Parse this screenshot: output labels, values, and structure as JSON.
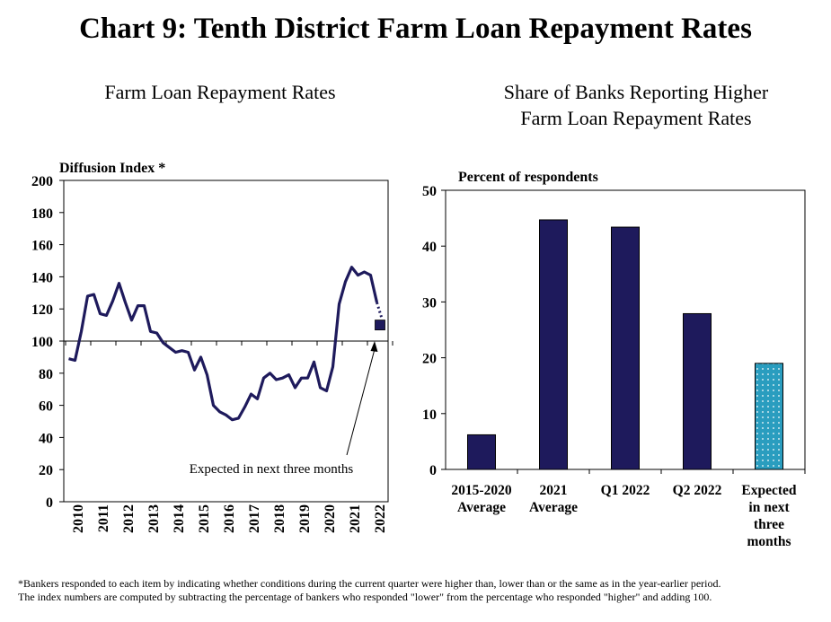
{
  "title": "Chart 9: Tenth District Farm Loan Repayment Rates",
  "colors": {
    "series": "#1e1a5c",
    "expected_bar": "#2a9dbf",
    "axis": "#000000"
  },
  "footnote": [
    "*Bankers responded to each item by indicating whether conditions during the current quarter were higher than,  lower than or the same as in the year-earlier period.",
    "The index numbers are computed by subtracting the percentage of bankers who responded \"lower\" from the percentage who responded \"higher\" and adding 100."
  ],
  "chart_data": [
    {
      "type": "line",
      "title": "Farm Loan Repayment Rates",
      "ylabel": "Diffusion  Index  *",
      "ylim": [
        0,
        200
      ],
      "yticks": [
        0,
        20,
        40,
        60,
        80,
        100,
        120,
        140,
        160,
        180,
        200
      ],
      "xticks": [
        "2010",
        "2011",
        "2012",
        "2013",
        "2014",
        "2015",
        "2016",
        "2017",
        "2018",
        "2019",
        "2020",
        "2021",
        "2022"
      ],
      "reference_line": 100,
      "quarters_per_year": 4,
      "start_year": 2010,
      "series": [
        {
          "values": [
            89,
            88,
            106,
            128,
            129,
            117,
            116,
            125,
            136,
            124,
            113,
            122,
            122,
            106,
            105,
            99,
            96,
            93,
            94,
            93,
            82,
            90,
            79,
            60,
            56,
            54,
            51,
            52,
            59,
            67,
            64,
            77,
            80,
            76,
            77,
            79,
            71,
            77,
            77,
            87,
            71,
            69,
            84,
            123,
            137,
            146,
            141,
            143,
            141,
            124
          ]
        }
      ],
      "projection": {
        "from": 124,
        "to": 115
      },
      "expected_marker": 110,
      "annotation": "Expected in next three months"
    },
    {
      "type": "bar",
      "title": "Share of Banks Reporting Higher\nFarm Loan Repayment Rates",
      "ylabel": "Percent of respondents",
      "ylim": [
        0,
        50
      ],
      "yticks": [
        0,
        10,
        20,
        30,
        40,
        50
      ],
      "categories": [
        "2015-2020\nAverage",
        "2021\nAverage",
        "Q1 2022",
        "Q2 2022",
        "Expected\nin next\nthree\nmonths"
      ],
      "values": [
        6.2,
        44.7,
        43.4,
        27.9,
        19.0
      ]
    }
  ]
}
